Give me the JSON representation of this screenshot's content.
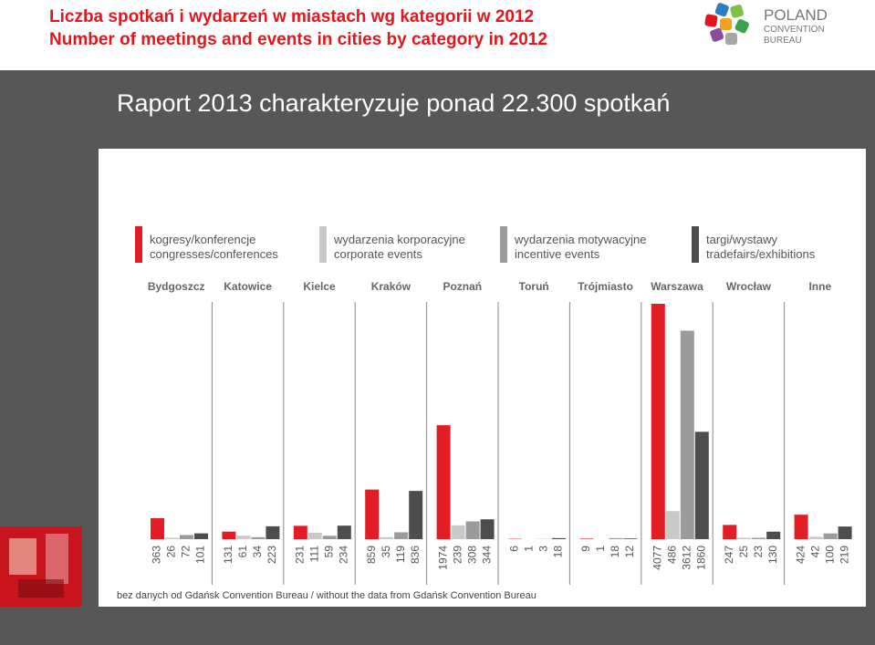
{
  "header": {
    "title_pl": "Liczba spotkań i wydarzeń w miastach wg kategorii w 2012",
    "title_en": "Number of meetings and events in cities by category in 2012",
    "logo": [
      "POLAND",
      "CONVENTION",
      "BUREAU"
    ],
    "subtitle": "Raport 2013 charakteryzuje ponad 22.300 spotkań"
  },
  "chart_data": {
    "type": "bar",
    "categories": [
      "Bydgoszcz",
      "Katowice",
      "Kielce",
      "Kraków",
      "Poznań",
      "Toruń",
      "Trójmiasto",
      "Warszawa",
      "Wrocław",
      "Inne"
    ],
    "series": [
      {
        "name": "kogresy/konferencje",
        "name_en": "congresses/conferences",
        "color": "#e31d25",
        "values": [
          363,
          131,
          231,
          859,
          1974,
          6,
          9,
          4077,
          247,
          424
        ]
      },
      {
        "name": "wydarzenia korporacyjne",
        "name_en": "corporate events",
        "color": "#c9c9c9",
        "values": [
          26,
          61,
          111,
          35,
          239,
          1,
          1,
          486,
          25,
          42
        ]
      },
      {
        "name": "wydarzenia motywacyjne",
        "name_en": "incentive events",
        "color": "#9b9b9b",
        "values": [
          72,
          34,
          59,
          119,
          308,
          3,
          18,
          3612,
          23,
          100
        ]
      },
      {
        "name": "targi/wystawy",
        "name_en": "tradefairs/exhibitions",
        "color": "#4d4d4d",
        "values": [
          101,
          223,
          234,
          836,
          344,
          18,
          12,
          1860,
          130,
          219
        ]
      }
    ],
    "note": "bez danych od Gdańsk Convention Bureau / without the data from Gdańsk Convention Bureau"
  }
}
